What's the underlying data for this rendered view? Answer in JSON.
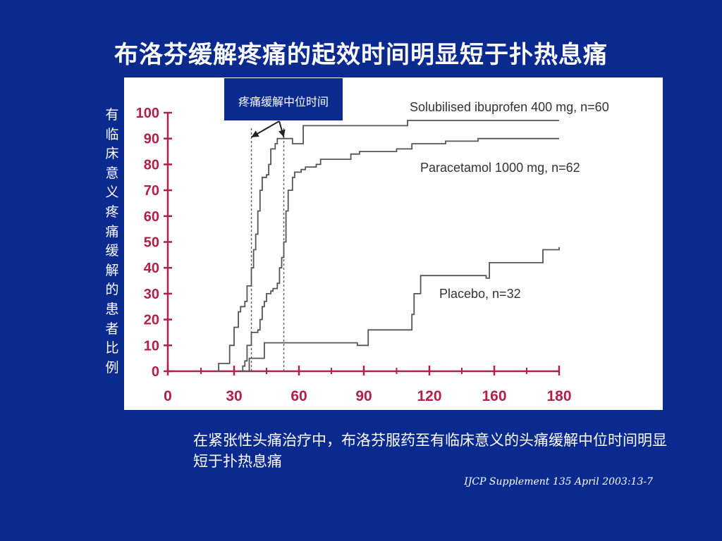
{
  "slide": {
    "title": "布洛芬缓解疼痛的起效时间明显短于扑热息痛",
    "y_axis_label": "有临床意义疼痛缓解的患者比例",
    "callout": "疼痛缓解中位时间",
    "caption": "在紧张性头痛治疗中，布洛芬服药至有临床意义的头痛缓解中位时间明显短于扑热息痛",
    "citation": "IJCP Supplement 135 April 2003:13-7"
  },
  "colors": {
    "background": "#0a2a8f",
    "axis": "#b22048",
    "curve": "#555555",
    "text": "#ffffff"
  },
  "chart_data": {
    "type": "line",
    "line_shape": "step",
    "title": "",
    "xlabel": "",
    "ylabel": "有临床意义疼痛缓解的患者比例",
    "xlim": [
      0,
      180
    ],
    "ylim": [
      0,
      100
    ],
    "x_ticks": [
      0,
      30,
      60,
      90,
      120,
      160,
      180
    ],
    "x_tick_labels": [
      "0",
      "30",
      "60",
      "90",
      "120",
      "160",
      "180"
    ],
    "y_ticks": [
      0,
      10,
      20,
      30,
      40,
      50,
      60,
      70,
      80,
      90,
      100
    ],
    "y_tick_labels": [
      "0",
      "10",
      "20",
      "30",
      "40",
      "50",
      "60",
      "70",
      "80",
      "90",
      "100"
    ],
    "grid": false,
    "median_markers_x": [
      38,
      53
    ],
    "series": [
      {
        "name": "Solubilised ibuprofen 400 mg, n=60",
        "points": [
          [
            22,
            0
          ],
          [
            23,
            3
          ],
          [
            27,
            3
          ],
          [
            28,
            10
          ],
          [
            29,
            10
          ],
          [
            30,
            17
          ],
          [
            31,
            17
          ],
          [
            32,
            23
          ],
          [
            33,
            25
          ],
          [
            35,
            27
          ],
          [
            36,
            33
          ],
          [
            38,
            40
          ],
          [
            39,
            47
          ],
          [
            40,
            53
          ],
          [
            41,
            62
          ],
          [
            42,
            70
          ],
          [
            43,
            75
          ],
          [
            45,
            76
          ],
          [
            46,
            80
          ],
          [
            47,
            86
          ],
          [
            49,
            88
          ],
          [
            50,
            90
          ],
          [
            53,
            90
          ],
          [
            57,
            88
          ],
          [
            61,
            88
          ],
          [
            62,
            95
          ],
          [
            92,
            95
          ],
          [
            110,
            97
          ],
          [
            180,
            97
          ]
        ]
      },
      {
        "name": "Paracetamol 1000 mg, n=62",
        "points": [
          [
            33,
            0
          ],
          [
            34,
            2
          ],
          [
            35,
            4
          ],
          [
            36,
            10
          ],
          [
            38,
            15
          ],
          [
            41,
            16
          ],
          [
            42,
            20
          ],
          [
            43,
            25
          ],
          [
            44,
            27
          ],
          [
            45,
            30
          ],
          [
            47,
            31
          ],
          [
            48,
            32
          ],
          [
            50,
            34
          ],
          [
            51,
            40
          ],
          [
            52,
            44
          ],
          [
            53,
            50
          ],
          [
            54,
            62
          ],
          [
            55,
            70
          ],
          [
            57,
            75
          ],
          [
            58,
            77
          ],
          [
            61,
            78
          ],
          [
            63,
            79
          ],
          [
            68,
            80
          ],
          [
            70,
            82
          ],
          [
            84,
            84
          ],
          [
            88,
            85
          ],
          [
            105,
            86
          ],
          [
            112,
            88
          ],
          [
            130,
            89
          ],
          [
            150,
            90
          ],
          [
            180,
            90
          ]
        ]
      },
      {
        "name": "Placebo, n=32",
        "points": [
          [
            33,
            0
          ],
          [
            36,
            0
          ],
          [
            37,
            5
          ],
          [
            43,
            5
          ],
          [
            44,
            11
          ],
          [
            87,
            10
          ],
          [
            92,
            16
          ],
          [
            110,
            16
          ],
          [
            112,
            22
          ],
          [
            113,
            30
          ],
          [
            116,
            37
          ],
          [
            147,
            37
          ],
          [
            155,
            36
          ],
          [
            157,
            42
          ],
          [
            172,
            42
          ],
          [
            175,
            47
          ],
          [
            180,
            48
          ]
        ]
      }
    ],
    "annotations": [
      {
        "text": "Solubilised ibuprofen 400 mg, n=60",
        "series": 0
      },
      {
        "text": "Paracetamol  1000 mg, n=62",
        "series": 1
      },
      {
        "text": "Placebo, n=32",
        "series": 2
      }
    ]
  }
}
